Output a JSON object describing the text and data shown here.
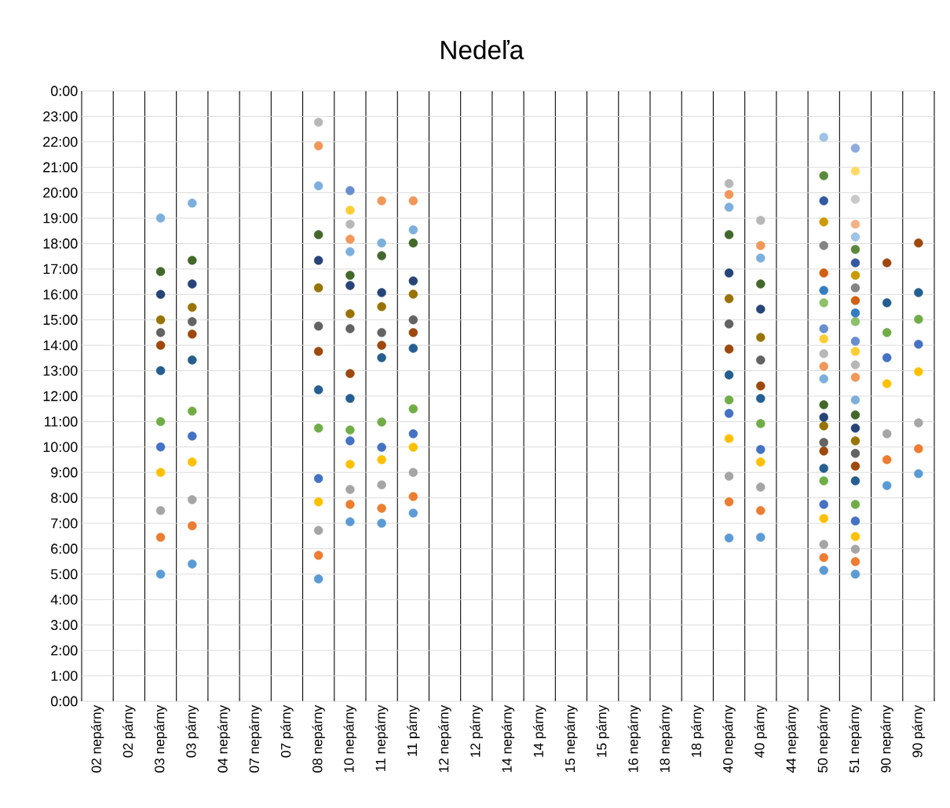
{
  "chart_data": {
    "type": "scatter",
    "title": "Nedeľa",
    "marker": "circle",
    "grid": true,
    "categories": [
      "02 nepárny",
      "02 párny",
      "03 nepárny",
      "03 párny",
      "04 nepárny",
      "07 nepárny",
      "07 párny",
      "08 nepárny",
      "10 nepárny",
      "11 nepárny",
      "11 párny",
      "12 nepárny",
      "12 párny",
      "14 nepárny",
      "14 párny",
      "15 nepárny",
      "15 párny",
      "16 nepárny",
      "18 nepárny",
      "18 párny",
      "40 nepárny",
      "40 párny",
      "44 nepárny",
      "50 nepárny",
      "51 nepárny",
      "90 nepárny",
      "90 párny"
    ],
    "ylim": [
      0,
      24
    ],
    "yticks": [
      {
        "value": 0,
        "label": "0:00"
      },
      {
        "value": 1,
        "label": "1:00"
      },
      {
        "value": 2,
        "label": "2:00"
      },
      {
        "value": 3,
        "label": "3:00"
      },
      {
        "value": 4,
        "label": "4:00"
      },
      {
        "value": 5,
        "label": "5:00"
      },
      {
        "value": 6,
        "label": "6:00"
      },
      {
        "value": 7,
        "label": "7:00"
      },
      {
        "value": 8,
        "label": "8:00"
      },
      {
        "value": 9,
        "label": "9:00"
      },
      {
        "value": 10,
        "label": "10:00"
      },
      {
        "value": 11,
        "label": "11:00"
      },
      {
        "value": 12,
        "label": "12:00"
      },
      {
        "value": 13,
        "label": "13:00"
      },
      {
        "value": 14,
        "label": "14:00"
      },
      {
        "value": 15,
        "label": "15:00"
      },
      {
        "value": 16,
        "label": "16:00"
      },
      {
        "value": 17,
        "label": "17:00"
      },
      {
        "value": 18,
        "label": "18:00"
      },
      {
        "value": 19,
        "label": "19:00"
      },
      {
        "value": 20,
        "label": "20:00"
      },
      {
        "value": 21,
        "label": "21:00"
      },
      {
        "value": 22,
        "label": "22:00"
      },
      {
        "value": 23,
        "label": "23:00"
      },
      {
        "value": 24,
        "label": "0:00"
      }
    ],
    "series": [
      {
        "color": "#5b9bd5",
        "values": [
          null,
          null,
          5.0,
          5.4,
          null,
          null,
          null,
          4.81,
          7.06,
          7.0,
          7.4,
          null,
          null,
          null,
          null,
          null,
          null,
          null,
          null,
          null,
          6.42,
          6.45,
          null,
          5.15,
          5.0,
          8.48,
          8.95
        ]
      },
      {
        "color": "#ed7d31",
        "values": [
          null,
          null,
          6.45,
          6.9,
          null,
          null,
          null,
          5.74,
          7.74,
          7.59,
          8.05,
          null,
          null,
          null,
          null,
          null,
          null,
          null,
          null,
          null,
          7.84,
          7.5,
          null,
          5.65,
          5.49,
          9.5,
          9.93
        ]
      },
      {
        "color": "#a5a5a5",
        "values": [
          null,
          null,
          7.5,
          7.93,
          null,
          null,
          null,
          6.72,
          8.33,
          8.51,
          9.0,
          null,
          null,
          null,
          null,
          null,
          null,
          null,
          null,
          null,
          8.85,
          8.42,
          null,
          6.17,
          5.98,
          10.52,
          10.95
        ]
      },
      {
        "color": "#ffc000",
        "values": [
          null,
          null,
          9.0,
          9.41,
          null,
          null,
          null,
          7.84,
          9.32,
          9.5,
          9.99,
          null,
          null,
          null,
          null,
          null,
          null,
          null,
          null,
          null,
          10.33,
          9.41,
          null,
          7.19,
          6.48,
          12.49,
          12.96
        ]
      },
      {
        "color": "#4472c4",
        "values": [
          null,
          null,
          10.0,
          10.43,
          null,
          null,
          null,
          8.76,
          10.24,
          9.99,
          10.52,
          null,
          null,
          null,
          null,
          null,
          null,
          null,
          null,
          null,
          11.32,
          9.9,
          null,
          7.74,
          7.09,
          13.51,
          14.04
        ]
      },
      {
        "color": "#70ad47",
        "values": [
          null,
          null,
          11.0,
          11.41,
          null,
          null,
          null,
          10.74,
          10.67,
          10.98,
          11.5,
          null,
          null,
          null,
          null,
          null,
          null,
          null,
          null,
          null,
          11.85,
          10.92,
          null,
          8.67,
          7.74,
          14.5,
          15.02
        ]
      },
      {
        "color": "#255e91",
        "values": [
          null,
          null,
          13.0,
          13.42,
          null,
          null,
          null,
          12.25,
          11.91,
          13.51,
          13.88,
          null,
          null,
          null,
          null,
          null,
          null,
          null,
          null,
          null,
          12.83,
          11.91,
          null,
          9.16,
          8.67,
          15.67,
          16.07
        ]
      },
      {
        "color": "#9e480e",
        "values": [
          null,
          null,
          14.0,
          14.44,
          null,
          null,
          null,
          13.76,
          12.89,
          14.0,
          14.5,
          null,
          null,
          null,
          null,
          null,
          null,
          null,
          null,
          null,
          13.85,
          12.4,
          null,
          9.84,
          9.25,
          17.24,
          18.02
        ]
      },
      {
        "color": "#636363",
        "values": [
          null,
          null,
          14.5,
          14.93,
          null,
          null,
          null,
          14.75,
          14.65,
          14.5,
          15.0,
          null,
          null,
          null,
          null,
          null,
          null,
          null,
          null,
          null,
          14.84,
          13.42,
          null,
          10.18,
          9.75,
          null,
          null
        ]
      },
      {
        "color": "#997300",
        "values": [
          null,
          null,
          15.0,
          15.49,
          null,
          null,
          null,
          16.26,
          15.24,
          15.52,
          16.01,
          null,
          null,
          null,
          null,
          null,
          null,
          null,
          null,
          null,
          15.83,
          14.31,
          null,
          10.83,
          10.24,
          null,
          null
        ]
      },
      {
        "color": "#264478",
        "values": [
          null,
          null,
          16.0,
          16.41,
          null,
          null,
          null,
          17.34,
          16.35,
          16.07,
          16.53,
          null,
          null,
          null,
          null,
          null,
          null,
          null,
          null,
          null,
          16.84,
          15.42,
          null,
          11.17,
          10.74,
          null,
          null
        ]
      },
      {
        "color": "#43682b",
        "values": [
          null,
          null,
          16.9,
          17.34,
          null,
          null,
          null,
          18.35,
          16.75,
          17.52,
          18.02,
          null,
          null,
          null,
          null,
          null,
          null,
          null,
          null,
          null,
          18.35,
          16.41,
          null,
          11.66,
          11.26,
          null,
          null
        ]
      },
      {
        "color": "#7cafdd",
        "values": [
          null,
          null,
          19.0,
          19.59,
          null,
          null,
          null,
          20.27,
          17.68,
          18.02,
          18.54,
          null,
          null,
          null,
          null,
          null,
          null,
          null,
          null,
          null,
          19.43,
          17.43,
          null,
          12.68,
          11.85,
          null,
          null
        ]
      },
      {
        "color": "#f1975a",
        "values": [
          null,
          null,
          null,
          null,
          null,
          null,
          null,
          21.84,
          18.17,
          19.68,
          19.68,
          null,
          null,
          null,
          null,
          null,
          null,
          null,
          null,
          null,
          19.93,
          17.92,
          null,
          13.17,
          12.74,
          null,
          null
        ]
      },
      {
        "color": "#b7b7b7",
        "values": [
          null,
          null,
          null,
          null,
          null,
          null,
          null,
          22.77,
          18.76,
          null,
          null,
          null,
          null,
          null,
          null,
          null,
          null,
          null,
          null,
          null,
          20.36,
          18.91,
          null,
          13.67,
          13.23,
          null,
          null
        ]
      },
      {
        "color": "#ffcd33",
        "values": [
          null,
          null,
          null,
          null,
          null,
          null,
          null,
          null,
          19.31,
          null,
          null,
          null,
          null,
          null,
          null,
          null,
          null,
          null,
          null,
          null,
          null,
          null,
          null,
          14.25,
          13.76,
          null,
          null
        ]
      },
      {
        "color": "#698ed0",
        "values": [
          null,
          null,
          null,
          null,
          null,
          null,
          null,
          null,
          20.08,
          null,
          null,
          null,
          null,
          null,
          null,
          null,
          null,
          null,
          null,
          null,
          null,
          null,
          null,
          14.65,
          14.16,
          null,
          null
        ]
      },
      {
        "color": "#8cc168",
        "values": [
          null,
          null,
          null,
          null,
          null,
          null,
          null,
          null,
          null,
          null,
          null,
          null,
          null,
          null,
          null,
          null,
          null,
          null,
          null,
          null,
          null,
          null,
          null,
          15.67,
          14.93,
          null,
          null
        ]
      },
      {
        "color": "#327dc2",
        "values": [
          null,
          null,
          null,
          null,
          null,
          null,
          null,
          null,
          null,
          null,
          null,
          null,
          null,
          null,
          null,
          null,
          null,
          null,
          null,
          null,
          null,
          null,
          null,
          16.16,
          15.27,
          null,
          null
        ]
      },
      {
        "color": "#d26012",
        "values": [
          null,
          null,
          null,
          null,
          null,
          null,
          null,
          null,
          null,
          null,
          null,
          null,
          null,
          null,
          null,
          null,
          null,
          null,
          null,
          null,
          null,
          null,
          null,
          16.84,
          15.76,
          null,
          null
        ]
      },
      {
        "color": "#848484",
        "values": [
          null,
          null,
          null,
          null,
          null,
          null,
          null,
          null,
          null,
          null,
          null,
          null,
          null,
          null,
          null,
          null,
          null,
          null,
          null,
          null,
          null,
          null,
          null,
          17.92,
          16.26,
          null,
          null
        ]
      },
      {
        "color": "#cc9a00",
        "values": [
          null,
          null,
          null,
          null,
          null,
          null,
          null,
          null,
          null,
          null,
          null,
          null,
          null,
          null,
          null,
          null,
          null,
          null,
          null,
          null,
          null,
          null,
          null,
          18.85,
          16.75,
          null,
          null
        ]
      },
      {
        "color": "#335aa1",
        "values": [
          null,
          null,
          null,
          null,
          null,
          null,
          null,
          null,
          null,
          null,
          null,
          null,
          null,
          null,
          null,
          null,
          null,
          null,
          null,
          null,
          null,
          null,
          null,
          19.68,
          17.24,
          null,
          null
        ]
      },
      {
        "color": "#5a8a39",
        "values": [
          null,
          null,
          null,
          null,
          null,
          null,
          null,
          null,
          null,
          null,
          null,
          null,
          null,
          null,
          null,
          null,
          null,
          null,
          null,
          null,
          null,
          null,
          null,
          20.67,
          17.77,
          null,
          null
        ]
      },
      {
        "color": "#9dc3e6",
        "values": [
          null,
          null,
          null,
          null,
          null,
          null,
          null,
          null,
          null,
          null,
          null,
          null,
          null,
          null,
          null,
          null,
          null,
          null,
          null,
          null,
          null,
          null,
          null,
          22.18,
          18.26,
          null,
          null
        ]
      },
      {
        "color": "#f4b183",
        "values": [
          null,
          null,
          null,
          null,
          null,
          null,
          null,
          null,
          null,
          null,
          null,
          null,
          null,
          null,
          null,
          null,
          null,
          null,
          null,
          null,
          null,
          null,
          null,
          null,
          18.76,
          null,
          null
        ]
      },
      {
        "color": "#c9c9c9",
        "values": [
          null,
          null,
          null,
          null,
          null,
          null,
          null,
          null,
          null,
          null,
          null,
          null,
          null,
          null,
          null,
          null,
          null,
          null,
          null,
          null,
          null,
          null,
          null,
          null,
          19.74,
          null,
          null
        ]
      },
      {
        "color": "#ffd966",
        "values": [
          null,
          null,
          null,
          null,
          null,
          null,
          null,
          null,
          null,
          null,
          null,
          null,
          null,
          null,
          null,
          null,
          null,
          null,
          null,
          null,
          null,
          null,
          null,
          null,
          20.85,
          null,
          null
        ]
      },
      {
        "color": "#8faadc",
        "values": [
          null,
          null,
          null,
          null,
          null,
          null,
          null,
          null,
          null,
          null,
          null,
          null,
          null,
          null,
          null,
          null,
          null,
          null,
          null,
          null,
          null,
          null,
          null,
          null,
          21.75,
          null,
          null
        ]
      }
    ]
  }
}
